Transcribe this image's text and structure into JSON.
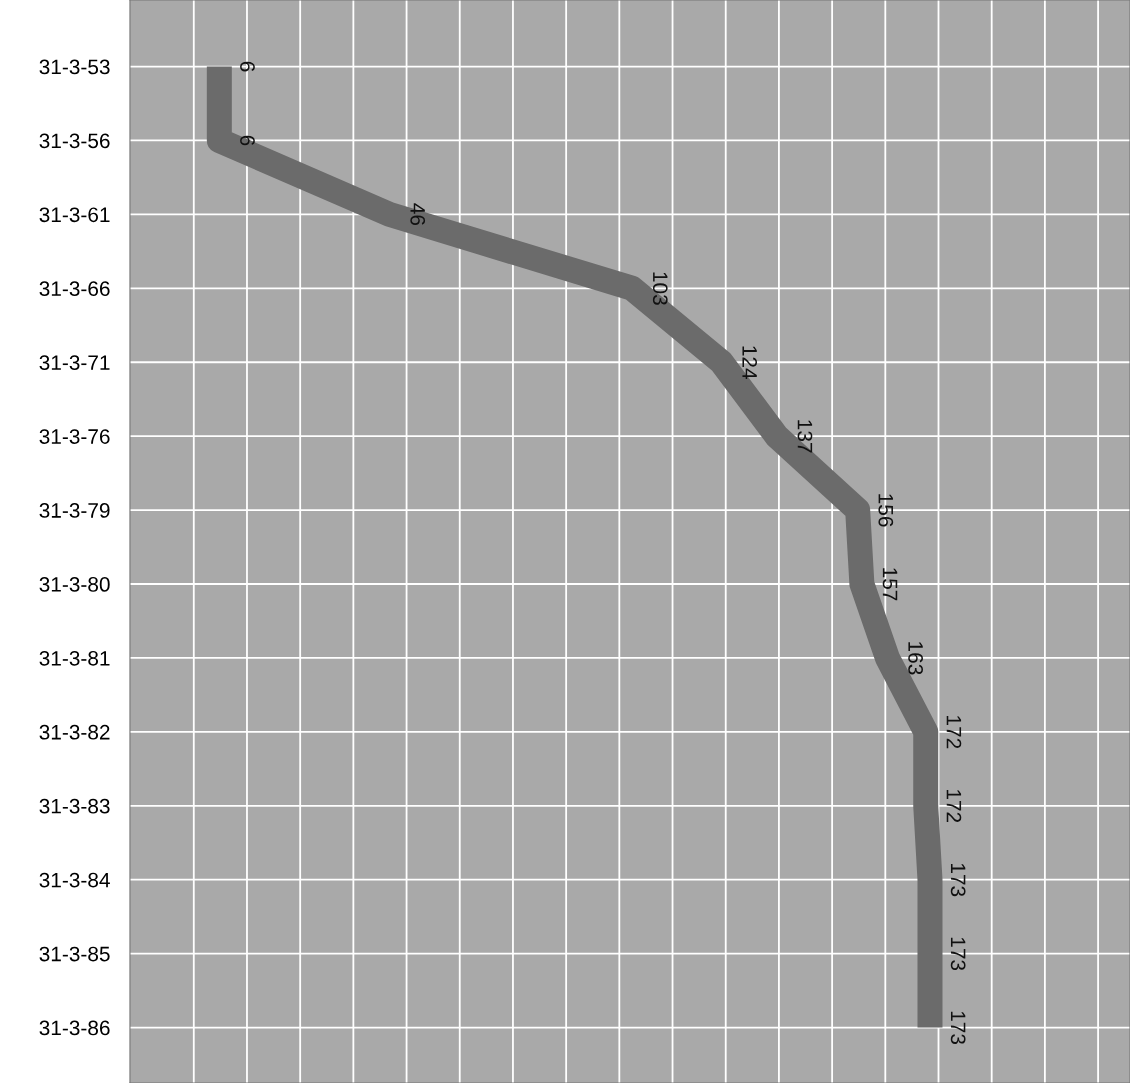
{
  "chart_data": {
    "type": "line",
    "orientation": "horizontal",
    "categories": [
      "31-3-53",
      "31-3-56",
      "31-3-61",
      "31-3-66",
      "31-3-71",
      "31-3-76",
      "31-3-79",
      "31-3-80",
      "31-3-81",
      "31-3-82",
      "31-3-83",
      "31-3-84",
      "31-3-85",
      "31-3-86"
    ],
    "series": [
      {
        "color": "#6b6b6b",
        "values": [
          6,
          6,
          46,
          103,
          124,
          137,
          156,
          157,
          163,
          172,
          172,
          173,
          173,
          173
        ]
      }
    ],
    "data_labels": true,
    "xlim": [
      -15,
      220
    ],
    "xticks": [
      {
        "value": 0,
        "label": null
      },
      {
        "value": 12.5,
        "label": null
      },
      {
        "value": 25,
        "label": null
      },
      {
        "value": 37.5,
        "label": null
      },
      {
        "value": 50,
        "label": null
      },
      {
        "value": 62.5,
        "label": null
      },
      {
        "value": 75,
        "label": null
      },
      {
        "value": 87.5,
        "label": null
      },
      {
        "value": 100,
        "label": null
      },
      {
        "value": 112.5,
        "label": null
      },
      {
        "value": 125,
        "label": null
      },
      {
        "value": 137.5,
        "label": null
      },
      {
        "value": 150,
        "label": null
      },
      {
        "value": 162.5,
        "label": null
      },
      {
        "value": 175,
        "label": null
      },
      {
        "value": 187.5,
        "label": null
      },
      {
        "value": 200,
        "label": null
      },
      {
        "value": 212.5,
        "label": null
      }
    ],
    "grid": true,
    "tick_labels": "y",
    "marker": "none",
    "line_style": "solid"
  }
}
